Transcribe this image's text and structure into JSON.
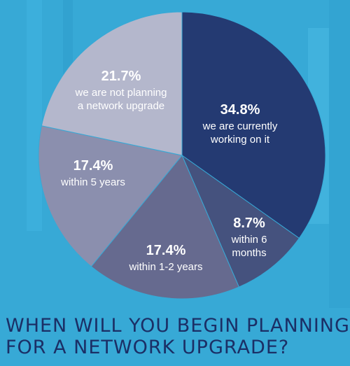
{
  "colors": {
    "background": "#37a9d6",
    "title": "#1b2f66"
  },
  "chart_data": {
    "type": "pie",
    "title_lines": [
      "WHEN WILL YOU BEGIN PLANNING",
      "FOR A NETWORK UPGRADE?"
    ],
    "start_angle_deg": 0,
    "direction": "clockwise",
    "slices": [
      {
        "value": 34.8,
        "value_label": "34.8%",
        "label_lines": [
          "we are currently",
          "working on it"
        ],
        "color": "#243a72"
      },
      {
        "value": 8.7,
        "value_label": "8.7%",
        "label_lines": [
          "within 6",
          "months"
        ],
        "color": "#45527e"
      },
      {
        "value": 17.4,
        "value_label": "17.4%",
        "label_lines": [
          "within 1-2 years"
        ],
        "color": "#666a8f"
      },
      {
        "value": 17.4,
        "value_label": "17.4%",
        "label_lines": [
          "within 5 years"
        ],
        "color": "#8b8fae"
      },
      {
        "value": 21.7,
        "value_label": "21.7%",
        "label_lines": [
          "we are not planning",
          "a network upgrade"
        ],
        "color": "#b4b7cc"
      }
    ]
  }
}
